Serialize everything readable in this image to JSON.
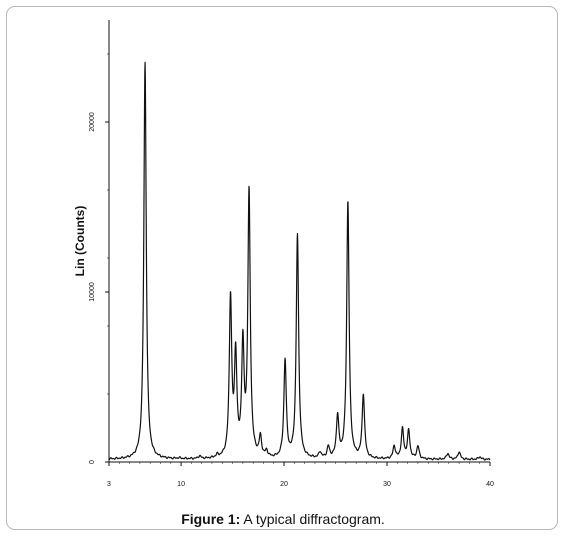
{
  "chart_data": {
    "type": "line",
    "xlabel": "",
    "ylabel": "Lin (Counts)",
    "xlim": [
      3,
      40
    ],
    "ylim": [
      0,
      26000
    ],
    "x_ticks": [
      3,
      10,
      20,
      30,
      40
    ],
    "y_ticks": [
      0,
      10000,
      20000
    ],
    "grid": false,
    "legend": "none",
    "line_color": "#111111",
    "baseline": 150,
    "peaks": [
      {
        "x": 6.5,
        "y": 23500
      },
      {
        "x": 9.8,
        "y": 200
      },
      {
        "x": 11.8,
        "y": 300
      },
      {
        "x": 13.5,
        "y": 300
      },
      {
        "x": 14.8,
        "y": 9500
      },
      {
        "x": 15.3,
        "y": 6000
      },
      {
        "x": 16.0,
        "y": 6600
      },
      {
        "x": 16.6,
        "y": 15700
      },
      {
        "x": 17.7,
        "y": 1300
      },
      {
        "x": 18.3,
        "y": 500
      },
      {
        "x": 20.1,
        "y": 5900
      },
      {
        "x": 21.3,
        "y": 13300
      },
      {
        "x": 23.5,
        "y": 500
      },
      {
        "x": 24.3,
        "y": 800
      },
      {
        "x": 25.2,
        "y": 2600
      },
      {
        "x": 26.2,
        "y": 15300
      },
      {
        "x": 27.7,
        "y": 3900
      },
      {
        "x": 30.7,
        "y": 900
      },
      {
        "x": 31.5,
        "y": 1900
      },
      {
        "x": 32.1,
        "y": 1800
      },
      {
        "x": 33.0,
        "y": 900
      },
      {
        "x": 35.9,
        "y": 500
      },
      {
        "x": 37.0,
        "y": 600
      },
      {
        "x": 39.0,
        "y": 300
      }
    ]
  },
  "caption": {
    "label": "Figure 1:",
    "text": " A typical diffractogram."
  }
}
